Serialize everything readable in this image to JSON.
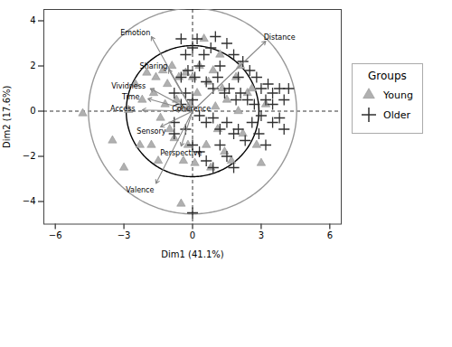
{
  "chart_data": {
    "type": "scatter",
    "xlabel": "Dim1 (41.1%)",
    "ylabel": "Dim2 (17.6%)",
    "xlim": [
      -6.5,
      6.5
    ],
    "ylim": [
      -5.0,
      4.5
    ],
    "xticks": [
      -6,
      -3,
      0,
      3,
      6
    ],
    "yticks": [
      -4,
      -2,
      0,
      2,
      4
    ],
    "origin": [
      0,
      0
    ],
    "legend": "right",
    "legend_title": "Groups",
    "circles": [
      {
        "radius": 4.55,
        "color": "#999999"
      },
      {
        "radius": 2.9,
        "color": "#000000"
      }
    ],
    "arrow_color": "#888888",
    "arrows": [
      {
        "label": "Emotion",
        "x": -1.8,
        "y": 3.3,
        "lx": -2.5,
        "ly": 3.45
      },
      {
        "label": "Distance",
        "x": 3.2,
        "y": 3.1,
        "lx": 3.8,
        "ly": 3.25
      },
      {
        "label": "Sharing",
        "x": -1.05,
        "y": 1.85,
        "lx": -1.7,
        "ly": 2.0
      },
      {
        "label": "Vividness",
        "x": -1.85,
        "y": 1.0,
        "lx": -2.8,
        "ly": 1.1
      },
      {
        "label": "Time",
        "x": -1.95,
        "y": 0.55,
        "lx": -2.7,
        "ly": 0.62
      },
      {
        "label": "Access",
        "x": -2.2,
        "y": 0.05,
        "lx": -3.05,
        "ly": 0.1
      },
      {
        "label": "Coherence",
        "x": -0.75,
        "y": 0.05,
        "lx": -0.05,
        "ly": 0.12
      },
      {
        "label": "Sensory",
        "x": -1.4,
        "y": -0.7,
        "lx": -1.8,
        "ly": -0.9
      },
      {
        "label": "Perspective",
        "x": -0.5,
        "y": -1.55,
        "lx": -0.5,
        "ly": -1.85
      },
      {
        "label": "Valence",
        "x": -1.6,
        "y": -3.2,
        "lx": -2.3,
        "ly": -3.5
      }
    ],
    "series": [
      {
        "name": "Young",
        "color": "#b0b0b0",
        "marker": "triangle",
        "values": [
          [
            -4.8,
            -0.1
          ],
          [
            -3.5,
            -1.3
          ],
          [
            -3.0,
            -2.5
          ],
          [
            -2.8,
            0.05
          ],
          [
            -2.5,
            1.2
          ],
          [
            -2.3,
            -1.5
          ],
          [
            -2.2,
            0.5
          ],
          [
            -2.0,
            1.7
          ],
          [
            -1.8,
            -1.5
          ],
          [
            -1.7,
            0.8
          ],
          [
            -1.6,
            1.5
          ],
          [
            -1.5,
            -2.2
          ],
          [
            -1.4,
            -0.3
          ],
          [
            -1.3,
            1.8
          ],
          [
            -1.2,
            0.3
          ],
          [
            -1.1,
            1.2
          ],
          [
            -1.0,
            -0.8
          ],
          [
            -0.9,
            2.0
          ],
          [
            -0.8,
            -1.2
          ],
          [
            -0.7,
            0.5
          ],
          [
            -0.6,
            1.5
          ],
          [
            -0.5,
            -4.1
          ],
          [
            -0.4,
            -2.2
          ],
          [
            -0.3,
            1.7
          ],
          [
            -0.2,
            -1.5
          ],
          [
            -0.1,
            0.3
          ],
          [
            0.0,
            1.5
          ],
          [
            0.1,
            -2.3
          ],
          [
            0.2,
            0.8
          ],
          [
            0.3,
            2.0
          ],
          [
            0.5,
            3.2
          ],
          [
            0.6,
            -1.5
          ],
          [
            0.7,
            1.3
          ],
          [
            0.8,
            -2.5
          ],
          [
            0.9,
            1.8
          ],
          [
            1.0,
            0.2
          ],
          [
            1.1,
            -0.8
          ],
          [
            1.2,
            2.5
          ],
          [
            1.3,
            1.0
          ],
          [
            1.4,
            -1.8
          ],
          [
            1.5,
            0.5
          ],
          [
            1.7,
            -2.2
          ],
          [
            1.9,
            1.5
          ],
          [
            2.0,
            0.0
          ],
          [
            2.1,
            2.0
          ],
          [
            2.2,
            -1.0
          ],
          [
            2.4,
            0.8
          ],
          [
            2.6,
            1.0
          ],
          [
            2.8,
            -1.5
          ],
          [
            3.0,
            -2.3
          ],
          [
            3.2,
            0.3
          ]
        ]
      },
      {
        "name": "Older",
        "color": "#303030",
        "marker": "plus",
        "values": [
          [
            -0.5,
            3.2
          ],
          [
            -0.3,
            2.5
          ],
          [
            0.0,
            2.8
          ],
          [
            0.2,
            3.2
          ],
          [
            0.5,
            2.5
          ],
          [
            0.8,
            2.8
          ],
          [
            1.0,
            3.3
          ],
          [
            1.2,
            2.0
          ],
          [
            1.5,
            3.0
          ],
          [
            1.8,
            2.5
          ],
          [
            2.0,
            1.5
          ],
          [
            2.2,
            2.2
          ],
          [
            2.5,
            1.8
          ],
          [
            2.8,
            1.5
          ],
          [
            3.0,
            1.0
          ],
          [
            3.3,
            1.2
          ],
          [
            3.5,
            0.8
          ],
          [
            3.8,
            1.0
          ],
          [
            4.0,
            0.5
          ],
          [
            4.2,
            1.0
          ],
          [
            -0.5,
            1.5
          ],
          [
            -0.2,
            1.8
          ],
          [
            0.1,
            1.5
          ],
          [
            0.3,
            2.0
          ],
          [
            0.6,
            1.3
          ],
          [
            0.9,
            1.0
          ],
          [
            1.1,
            1.5
          ],
          [
            1.4,
            0.8
          ],
          [
            1.6,
            1.0
          ],
          [
            1.9,
            0.5
          ],
          [
            2.1,
            0.8
          ],
          [
            2.4,
            0.5
          ],
          [
            2.7,
            0.3
          ],
          [
            3.0,
            -0.2
          ],
          [
            3.2,
            0.5
          ],
          [
            3.5,
            -0.5
          ],
          [
            -0.8,
            0.8
          ],
          [
            -0.5,
            0.3
          ],
          [
            -0.3,
            0.8
          ],
          [
            0.0,
            0.5
          ],
          [
            0.3,
            -0.2
          ],
          [
            0.6,
            -0.5
          ],
          [
            0.9,
            -0.3
          ],
          [
            1.2,
            -0.8
          ],
          [
            1.5,
            -0.5
          ],
          [
            1.8,
            -1.0
          ],
          [
            2.0,
            -0.8
          ],
          [
            2.3,
            -1.3
          ],
          [
            2.6,
            -0.5
          ],
          [
            2.9,
            -1.0
          ],
          [
            3.2,
            -1.5
          ],
          [
            0.0,
            -1.5
          ],
          [
            0.3,
            -1.8
          ],
          [
            0.6,
            -2.2
          ],
          [
            0.9,
            -2.5
          ],
          [
            1.2,
            -1.5
          ],
          [
            1.5,
            -2.0
          ],
          [
            1.8,
            -2.5
          ],
          [
            0.0,
            -4.5
          ],
          [
            -0.8,
            -0.5
          ],
          [
            -0.8,
            -1.0
          ],
          [
            -0.3,
            -0.8
          ],
          [
            3.8,
            -0.3
          ],
          [
            3.5,
            0.3
          ],
          [
            4.0,
            -0.8
          ]
        ]
      }
    ]
  }
}
